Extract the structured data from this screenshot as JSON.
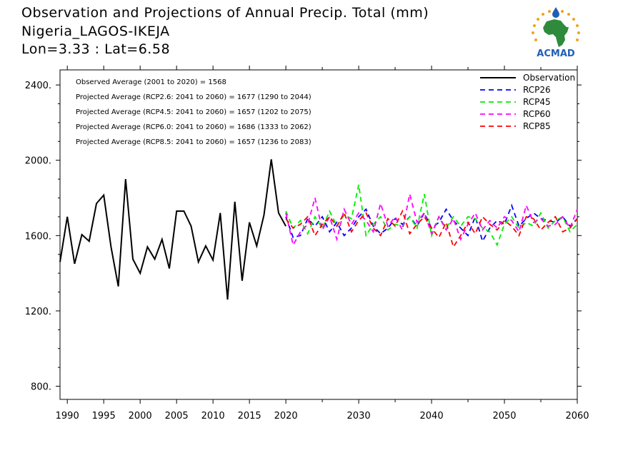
{
  "title": {
    "line1": "Observation and Projections of Annual Precip. Total (mm)",
    "line2": "Nigeria_LAGOS-IKEJA",
    "line3": "Lon=3.33 : Lat=6.58"
  },
  "logo": {
    "text": "ACMAD"
  },
  "annotations": [
    "Observed Average (2001 to 2020) = 1568",
    "Projected Average (RCP2.6: 2041 to 2060) = 1677 (1290 to 2044)",
    "Projected Average (RCP4.5: 2041 to 2060) = 1657 (1202 to 2075)",
    "Projected Average (RCP6.0: 2041 to 2060) = 1686 (1333 to 2062)",
    "Projected Average (RCP8.5: 2041 to 2060) = 1657 (1236 to 2083)"
  ],
  "colors": {
    "Observation": "#000000",
    "RCP26": "#0000ff",
    "RCP45": "#00ee00",
    "RCP60": "#ff00ff",
    "RCP85": "#ff0000"
  },
  "chart_data": {
    "type": "line",
    "xlim": [
      1989,
      2060
    ],
    "ylim": [
      730,
      2480
    ],
    "x_ticks": [
      {
        "value": 1990,
        "label": "1990"
      },
      {
        "value": 1995,
        "label": "1995"
      },
      {
        "value": 2000,
        "label": "2000"
      },
      {
        "value": 2005,
        "label": "2005"
      },
      {
        "value": 2010,
        "label": "2010"
      },
      {
        "value": 2015,
        "label": "2015"
      },
      {
        "value": 2020,
        "label": "2020"
      },
      {
        "value": 2030,
        "label": "2030"
      },
      {
        "value": 2040,
        "label": "2040"
      },
      {
        "value": 2050,
        "label": "2050"
      },
      {
        "value": 2060,
        "label": "2060"
      }
    ],
    "y_ticks": [
      {
        "value": 800,
        "label": "800."
      },
      {
        "value": 1200,
        "label": "1200."
      },
      {
        "value": 1600,
        "label": "1600."
      },
      {
        "value": 2000,
        "label": "2000."
      },
      {
        "value": 2400,
        "label": "2400."
      }
    ],
    "legend_position": "top-right",
    "series": [
      {
        "name": "Observation",
        "style": "solid",
        "x": [
          1989,
          1990,
          1991,
          1992,
          1993,
          1994,
          1995,
          1996,
          1997,
          1998,
          1999,
          2000,
          2001,
          2002,
          2003,
          2004,
          2005,
          2006,
          2007,
          2008,
          2009,
          2010,
          2011,
          2012,
          2013,
          2014,
          2015,
          2016,
          2017,
          2018,
          2019,
          2020
        ],
        "y": [
          1460,
          1700,
          1450,
          1605,
          1570,
          1770,
          1815,
          1540,
          1330,
          1900,
          1475,
          1400,
          1540,
          1475,
          1580,
          1425,
          1730,
          1730,
          1650,
          1460,
          1545,
          1470,
          1720,
          1260,
          1780,
          1360,
          1670,
          1545,
          1710,
          2005,
          1720,
          1650
        ]
      },
      {
        "name": "RCP26",
        "style": "dashed",
        "x": [
          2020,
          2021,
          2022,
          2023,
          2024,
          2025,
          2026,
          2027,
          2028,
          2029,
          2030,
          2031,
          2032,
          2033,
          2034,
          2035,
          2036,
          2037,
          2038,
          2039,
          2040,
          2041,
          2042,
          2043,
          2044,
          2045,
          2046,
          2047,
          2048,
          2049,
          2050,
          2051,
          2052,
          2053,
          2054,
          2055,
          2056,
          2057,
          2058,
          2059,
          2060
        ],
        "y": [
          1700,
          1590,
          1600,
          1690,
          1650,
          1700,
          1620,
          1670,
          1600,
          1640,
          1700,
          1740,
          1650,
          1610,
          1640,
          1690,
          1660,
          1700,
          1650,
          1720,
          1640,
          1670,
          1740,
          1680,
          1640,
          1600,
          1700,
          1570,
          1640,
          1680,
          1660,
          1760,
          1650,
          1690,
          1720,
          1690,
          1680,
          1670,
          1700,
          1650,
          1690
        ]
      },
      {
        "name": "RCP45",
        "style": "dashed",
        "x": [
          2020,
          2021,
          2022,
          2023,
          2024,
          2025,
          2026,
          2027,
          2028,
          2029,
          2030,
          2031,
          2032,
          2033,
          2034,
          2035,
          2036,
          2037,
          2038,
          2039,
          2040,
          2041,
          2042,
          2043,
          2044,
          2045,
          2046,
          2047,
          2048,
          2049,
          2050,
          2051,
          2052,
          2053,
          2054,
          2055,
          2056,
          2057,
          2058,
          2059,
          2060
        ],
        "y": [
          1730,
          1640,
          1680,
          1610,
          1700,
          1640,
          1730,
          1650,
          1710,
          1690,
          1870,
          1600,
          1660,
          1700,
          1630,
          1660,
          1650,
          1700,
          1640,
          1820,
          1600,
          1700,
          1640,
          1700,
          1650,
          1700,
          1690,
          1640,
          1620,
          1550,
          1660,
          1700,
          1640,
          1670,
          1650,
          1720,
          1640,
          1680,
          1700,
          1620,
          1660
        ]
      },
      {
        "name": "RCP60",
        "style": "dashed",
        "x": [
          2020,
          2021,
          2022,
          2023,
          2024,
          2025,
          2026,
          2027,
          2028,
          2029,
          2030,
          2031,
          2032,
          2033,
          2034,
          2035,
          2036,
          2037,
          2038,
          2039,
          2040,
          2041,
          2042,
          2043,
          2044,
          2045,
          2046,
          2047,
          2048,
          2049,
          2050,
          2051,
          2052,
          2053,
          2054,
          2055,
          2056,
          2057,
          2058,
          2059,
          2060
        ],
        "y": [
          1720,
          1550,
          1620,
          1660,
          1800,
          1630,
          1700,
          1580,
          1740,
          1660,
          1720,
          1680,
          1620,
          1770,
          1650,
          1700,
          1630,
          1820,
          1670,
          1720,
          1610,
          1700,
          1630,
          1690,
          1580,
          1660,
          1720,
          1630,
          1680,
          1640,
          1700,
          1680,
          1620,
          1760,
          1670,
          1690,
          1650,
          1660,
          1700,
          1640,
          1740
        ]
      },
      {
        "name": "RCP85",
        "style": "dashed",
        "x": [
          2020,
          2021,
          2022,
          2023,
          2024,
          2025,
          2026,
          2027,
          2028,
          2029,
          2030,
          2031,
          2032,
          2033,
          2034,
          2035,
          2036,
          2037,
          2038,
          2039,
          2040,
          2041,
          2042,
          2043,
          2044,
          2045,
          2046,
          2047,
          2048,
          2049,
          2050,
          2051,
          2052,
          2053,
          2054,
          2055,
          2056,
          2057,
          2058,
          2059,
          2060
        ],
        "y": [
          1690,
          1640,
          1660,
          1700,
          1600,
          1660,
          1700,
          1650,
          1720,
          1620,
          1680,
          1720,
          1640,
          1600,
          1690,
          1650,
          1730,
          1610,
          1660,
          1700,
          1640,
          1590,
          1670,
          1540,
          1600,
          1670,
          1610,
          1700,
          1660,
          1630,
          1680,
          1650,
          1600,
          1700,
          1690,
          1630,
          1670,
          1700,
          1620,
          1640,
          1690
        ]
      }
    ]
  }
}
